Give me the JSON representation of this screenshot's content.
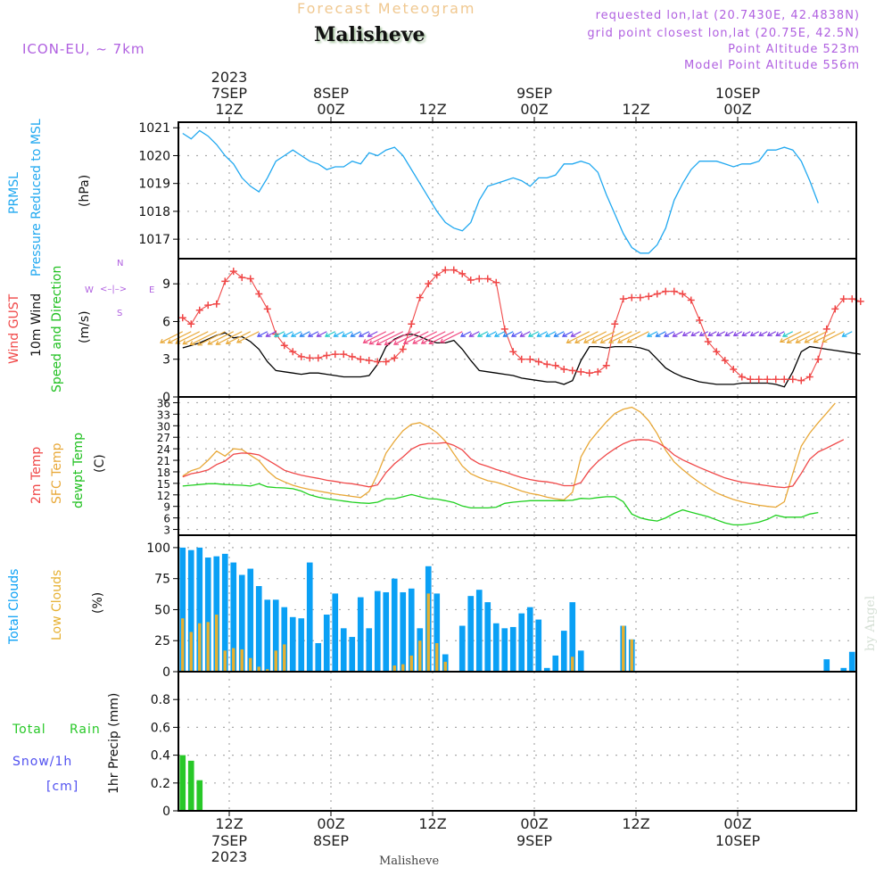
{
  "header": {
    "subtitle": "Forecast Meteogram",
    "location": "Malisheve",
    "model": "ICON-EU, ~ 7km",
    "requested": "requested lon,lat (20.7430E, 42.4838N)",
    "grid_point": "grid point closest lon,lat (20.75E, 42.5N)",
    "point_altitude": "Point Altitude 523m",
    "model_altitude": "Model Point Altitude 556m"
  },
  "top_axis": {
    "year": "2023",
    "labels": [
      {
        "hour": 6,
        "date": "7SEP",
        "time": "12Z"
      },
      {
        "hour": 18,
        "date": "8SEP",
        "time": "00Z"
      },
      {
        "hour": 30,
        "date": "",
        "time": "12Z"
      },
      {
        "hour": 42,
        "date": "9SEP",
        "time": "00Z"
      },
      {
        "hour": 54,
        "date": "",
        "time": "12Z"
      },
      {
        "hour": 66,
        "date": "10SEP",
        "time": "00Z"
      }
    ]
  },
  "bottom_axis": {
    "year": "2023",
    "labels": [
      {
        "hour": 6,
        "time": "12Z",
        "date": "7SEP"
      },
      {
        "hour": 18,
        "time": "00Z",
        "date": "8SEP"
      },
      {
        "hour": 30,
        "time": "12Z",
        "date": ""
      },
      {
        "hour": 42,
        "time": "00Z",
        "date": "9SEP"
      },
      {
        "hour": 54,
        "time": "12Z",
        "date": ""
      },
      {
        "hour": 66,
        "time": "00Z",
        "date": "10SEP"
      }
    ]
  },
  "panel_labels": {
    "pressure": {
      "a": "PRMSL",
      "b": "Pressure Reduced to MSL",
      "unit": "(hPa)"
    },
    "wind": {
      "a": "Wind GUST",
      "b": "10m Wind",
      "c": "Speed and Direction",
      "unit": "(m/s)",
      "compass": {
        "n": "N",
        "s": "S",
        "w": "W",
        "e": "E"
      }
    },
    "temp": {
      "a": "2m Temp",
      "b": "SFC Temp",
      "c": "dewpt Temp",
      "unit": "(C)"
    },
    "clouds": {
      "a": "Total Clouds",
      "b": "Low Clouds",
      "unit": "(%)"
    },
    "precip": {
      "a": "Total",
      "b": "Rain",
      "c": "Snow/1h",
      "d": "[cm]",
      "unit": "1hr Precip (mm)"
    }
  },
  "footer": {
    "location": "Malisheve",
    "credit": "by Angel"
  },
  "colors": {
    "pressure": "#20a8f0",
    "gust": "#f04848",
    "wind10m": "#000000",
    "t2m": "#f04848",
    "tsfc": "#e8a838",
    "dewpt": "#20d020",
    "total_clouds": "#0aa0f5",
    "low_clouds": "#e6b030",
    "rain": "#28c828",
    "label_purple": "#b060e0",
    "label_blue": "#5050f0"
  },
  "chart_data": [
    {
      "type": "line",
      "title": "PRMSL Pressure Reduced to MSL",
      "ylabel": "(hPa)",
      "x_unit": "hours from 06Z 7SEP 2023",
      "xlim": [
        0,
        80
      ],
      "ylim": [
        1016.3,
        1021.2
      ],
      "yticks": [
        1017,
        1018,
        1019,
        1020,
        1021
      ],
      "grid": true,
      "series": [
        {
          "name": "PRMSL",
          "x_start": 0.5,
          "x_step": 1,
          "values": [
            1020.8,
            1020.6,
            1020.9,
            1020.7,
            1020.4,
            1020.0,
            1019.7,
            1019.2,
            1018.9,
            1018.7,
            1019.2,
            1019.8,
            1020.0,
            1020.2,
            1020.0,
            1019.8,
            1019.7,
            1019.5,
            1019.6,
            1019.6,
            1019.8,
            1019.7,
            1020.1,
            1020.0,
            1020.2,
            1020.3,
            1020.0,
            1019.5,
            1019.0,
            1018.5,
            1018.0,
            1017.6,
            1017.4,
            1017.3,
            1017.6,
            1018.4,
            1018.9,
            1019.0,
            1019.1,
            1019.2,
            1019.1,
            1018.9,
            1019.2,
            1019.2,
            1019.3,
            1019.7,
            1019.7,
            1019.8,
            1019.7,
            1019.4,
            1018.6,
            1017.9,
            1017.2,
            1016.7,
            1016.5,
            1016.5,
            1016.8,
            1017.4,
            1018.4,
            1019.0,
            1019.5,
            1019.8,
            1019.8,
            1019.8,
            1019.7,
            1019.6,
            1019.7,
            1019.7,
            1019.8,
            1020.2,
            1020.2,
            1020.3,
            1020.2,
            1019.8,
            1019.1,
            1018.3
          ]
        }
      ]
    },
    {
      "type": "line",
      "title": "Wind GUST / 10m Wind Speed and Direction",
      "ylabel": "(m/s)",
      "xlim": [
        0,
        80
      ],
      "ylim": [
        0,
        11
      ],
      "yticks": [
        0,
        3,
        6,
        9
      ],
      "grid": true,
      "series": [
        {
          "name": "Wind GUST",
          "x_start": 0.5,
          "x_step": 1,
          "values": [
            6.3,
            5.8,
            6.9,
            7.3,
            7.4,
            9.2,
            10.0,
            9.5,
            9.4,
            8.2,
            7.0,
            5.0,
            4.1,
            3.6,
            3.2,
            3.1,
            3.1,
            3.3,
            3.4,
            3.4,
            3.2,
            3.0,
            2.9,
            2.8,
            2.8,
            3.1,
            3.8,
            5.8,
            7.9,
            9.0,
            9.7,
            10.1,
            10.1,
            9.8,
            9.3,
            9.4,
            9.4,
            9.1,
            5.4,
            3.6,
            3.0,
            3.0,
            2.8,
            2.6,
            2.5,
            2.2,
            2.1,
            2.0,
            1.9,
            2.0,
            2.5,
            5.8,
            7.8,
            7.9,
            7.9,
            8.0,
            8.2,
            8.4,
            8.4,
            8.2,
            7.7,
            6.1,
            4.4,
            3.6,
            2.9,
            2.2,
            1.6,
            1.4,
            1.4,
            1.4,
            1.4,
            1.4,
            1.4,
            1.3,
            1.6,
            3.0,
            5.4,
            7.0,
            7.8,
            7.8,
            7.6
          ]
        },
        {
          "name": "10m Wind",
          "x_start": 0.5,
          "x_step": 1,
          "values": [
            3.9,
            4.1,
            4.3,
            4.6,
            4.9,
            5.1,
            4.7,
            4.8,
            4.4,
            3.8,
            2.8,
            2.1,
            2.0,
            1.9,
            1.8,
            1.9,
            1.9,
            1.8,
            1.7,
            1.6,
            1.6,
            1.6,
            1.7,
            2.6,
            4.0,
            4.6,
            4.9,
            5.0,
            4.8,
            4.5,
            4.3,
            4.3,
            4.5,
            3.8,
            2.9,
            2.1,
            2.0,
            1.9,
            1.8,
            1.7,
            1.5,
            1.4,
            1.3,
            1.2,
            1.2,
            1.0,
            1.3,
            2.9,
            4.0,
            4.0,
            3.9,
            4.0,
            4.0,
            4.0,
            3.9,
            3.7,
            3.0,
            2.3,
            1.9,
            1.6,
            1.4,
            1.2,
            1.1,
            1.0,
            1.0,
            1.0,
            1.1,
            1.1,
            1.1,
            1.1,
            1.0,
            0.8,
            2.0,
            3.6,
            4.0,
            3.9,
            3.8,
            3.7,
            3.6,
            3.5,
            3.4
          ]
        },
        {
          "name": "10m Wind direction",
          "note": "barb arrows plotted at ~5 m/s row, mostly from NE/E; colored by direction"
        }
      ]
    },
    {
      "type": "line",
      "title": "2m Temp / SFC Temp / dewpt Temp",
      "ylabel": "(C)",
      "xlim": [
        0,
        80
      ],
      "ylim": [
        1.5,
        37.5
      ],
      "yticks": [
        3,
        6,
        9,
        12,
        15,
        18,
        21,
        24,
        27,
        30,
        33,
        36
      ],
      "grid": true,
      "series": [
        {
          "name": "2m Temp",
          "x_start": 0.5,
          "x_step": 1,
          "values": [
            16.7,
            17.5,
            17.9,
            18.5,
            19.9,
            20.8,
            22.6,
            22.9,
            22.8,
            22.4,
            21.1,
            19.8,
            18.4,
            17.7,
            17.1,
            16.7,
            16.3,
            15.8,
            15.5,
            15.1,
            14.9,
            14.5,
            14.1,
            14.6,
            17.8,
            20.1,
            21.9,
            23.9,
            25.0,
            25.4,
            25.4,
            25.6,
            24.9,
            23.7,
            21.4,
            20.1,
            19.4,
            18.6,
            18.0,
            17.2,
            16.5,
            16.0,
            15.6,
            15.4,
            15.0,
            14.4,
            14.4,
            15.2,
            18.4,
            20.7,
            22.5,
            24.0,
            25.3,
            26.2,
            26.4,
            26.3,
            25.7,
            24.3,
            22.4,
            21.1,
            20.1,
            19.1,
            18.2,
            17.3,
            16.4,
            15.8,
            15.3,
            15.0,
            14.7,
            14.4,
            14.1,
            13.9,
            14.3,
            17.6,
            21.3,
            23.2,
            24.2,
            25.3,
            26.4
          ]
        },
        {
          "name": "SFC Temp",
          "x_start": 0.5,
          "x_step": 1,
          "values": [
            16.9,
            18.3,
            19.0,
            21.0,
            23.4,
            22.1,
            24.0,
            23.8,
            22.3,
            20.9,
            18.3,
            16.4,
            15.4,
            14.5,
            13.9,
            13.4,
            13.0,
            12.6,
            12.2,
            11.9,
            11.6,
            11.3,
            12.9,
            17.4,
            22.9,
            26.0,
            28.7,
            30.4,
            30.8,
            29.7,
            28.2,
            26.0,
            22.7,
            19.5,
            17.5,
            16.5,
            15.7,
            15.3,
            14.6,
            13.8,
            13.0,
            12.4,
            12.0,
            11.4,
            11.0,
            10.7,
            12.7,
            21.9,
            25.8,
            28.5,
            31.0,
            33.2,
            34.3,
            34.8,
            33.6,
            31.3,
            27.9,
            23.6,
            20.6,
            18.6,
            16.8,
            15.2,
            13.8,
            12.5,
            11.6,
            10.8,
            10.2,
            9.7,
            9.3,
            9.0,
            8.8,
            10.2,
            17.5,
            24.7,
            28.1,
            30.8,
            33.3,
            35.9
          ]
        },
        {
          "name": "dewpt Temp",
          "x_start": 0.5,
          "x_step": 1,
          "values": [
            14.3,
            14.5,
            14.7,
            14.9,
            14.9,
            14.7,
            14.6,
            14.5,
            14.3,
            14.9,
            14.1,
            13.9,
            13.8,
            13.6,
            13.0,
            12.0,
            11.4,
            11.0,
            10.7,
            10.4,
            10.1,
            9.9,
            9.8,
            10.1,
            11.0,
            11.0,
            11.5,
            12.1,
            11.5,
            11.0,
            10.9,
            10.5,
            10.0,
            9.1,
            8.6,
            8.6,
            8.6,
            8.8,
            9.8,
            10.1,
            10.3,
            10.5,
            10.5,
            10.5,
            10.5,
            10.5,
            10.6,
            11.1,
            11.0,
            11.3,
            11.5,
            11.5,
            10.2,
            7.0,
            6.0,
            5.5,
            5.2,
            6.0,
            7.2,
            8.1,
            7.5,
            6.9,
            6.3,
            5.5,
            4.7,
            4.2,
            4.2,
            4.5,
            4.9,
            5.6,
            6.7,
            6.2,
            6.2,
            6.2,
            7.0,
            7.4
          ]
        }
      ]
    },
    {
      "type": "bar",
      "title": "Total Clouds / Low Clouds",
      "ylabel": "(%)",
      "xlim": [
        0,
        80
      ],
      "ylim": [
        0,
        110
      ],
      "yticks": [
        0,
        25,
        50,
        75,
        100
      ],
      "grid": true,
      "series": [
        {
          "name": "Total Clouds",
          "x_start": 0.5,
          "x_step": 1,
          "values": [
            100,
            98,
            100,
            92,
            93,
            95,
            88,
            78,
            83,
            69,
            58,
            58,
            52,
            44,
            43,
            88,
            23,
            46,
            63,
            35,
            28,
            60,
            35,
            65,
            64,
            75,
            64,
            67,
            35,
            85,
            63,
            14,
            0,
            37,
            61,
            66,
            56,
            39,
            35,
            36,
            47,
            52,
            42,
            3,
            13,
            33,
            56,
            17,
            0,
            0,
            0,
            0,
            37,
            26,
            0,
            0,
            0,
            0,
            0,
            0,
            0,
            0,
            0,
            0,
            0,
            0,
            0,
            0,
            0,
            0,
            0,
            0,
            0,
            0,
            0,
            0,
            10,
            0,
            3,
            16
          ]
        },
        {
          "name": "Low Clouds",
          "x_start": 0.5,
          "x_step": 1,
          "values": [
            43,
            32,
            39,
            40,
            46,
            17,
            19,
            18,
            11,
            4,
            2,
            17,
            22,
            0,
            0,
            0,
            0,
            0,
            0,
            0,
            0,
            0,
            0,
            0,
            0,
            5,
            6,
            13,
            25,
            63,
            23,
            8,
            0,
            0,
            0,
            0,
            0,
            0,
            0,
            0,
            0,
            0,
            0,
            0,
            0,
            0,
            12,
            0,
            0,
            0,
            0,
            0,
            37,
            26,
            0,
            0,
            0,
            0,
            0,
            0,
            0,
            0,
            0,
            0,
            0,
            0,
            0,
            0,
            0,
            0,
            0,
            0,
            0,
            0,
            0,
            0,
            0,
            0,
            0,
            0
          ]
        }
      ]
    },
    {
      "type": "bar",
      "title": "Total Rain / Snow 1hr Precip",
      "ylabel": "1hr Precip (mm)",
      "xlim": [
        0,
        80
      ],
      "ylim": [
        0,
        1.0
      ],
      "yticks": [
        0,
        0.2,
        0.4,
        0.6,
        0.8
      ],
      "grid": true,
      "series": [
        {
          "name": "Total Rain",
          "x_start": 0.5,
          "x_step": 1,
          "values": [
            0.4,
            0.36,
            0.22
          ]
        },
        {
          "name": "Snow/1h",
          "values": []
        }
      ]
    }
  ]
}
